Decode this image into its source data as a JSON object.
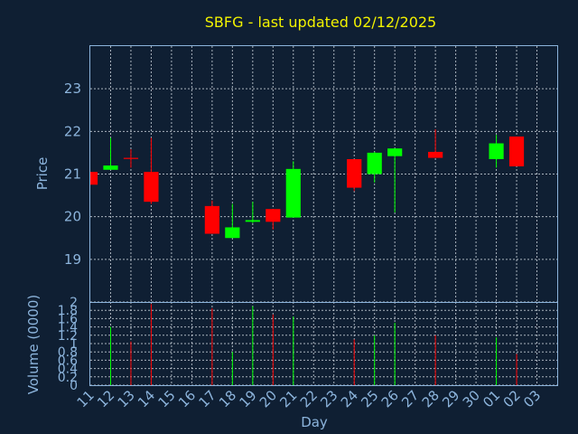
{
  "chart_data": {
    "type": "candlestick",
    "title": "SBFG - last updated 02/12/2025",
    "ylabel": "Price",
    "volume_label": "Volume (0000)",
    "xlabel": "Day",
    "x_ticks": [
      "11",
      "12",
      "13",
      "14",
      "15",
      "16",
      "17",
      "18",
      "19",
      "20",
      "21",
      "22",
      "23",
      "24",
      "25",
      "26",
      "27",
      "28",
      "29",
      "30",
      "01",
      "02",
      "03"
    ],
    "price_ylim": [
      18.0,
      24.0
    ],
    "price_ticks": [
      "19",
      "20",
      "21",
      "22",
      "23"
    ],
    "volume_ylim": [
      0,
      2
    ],
    "volume_ticks": [
      "0",
      "0.2",
      "0.4",
      "0.6",
      "0.8",
      "1",
      "1.2",
      "1.4",
      "1.6",
      "1.8",
      "2"
    ],
    "grid": true,
    "colors": {
      "up": "#00ff00",
      "down": "#ff0000",
      "neutral": "#ff0000"
    },
    "candles": [
      {
        "x": 11,
        "open": 21.05,
        "high": 21.05,
        "low": 20.75,
        "close": 20.75,
        "volume": 0.0
      },
      {
        "x": 12,
        "open": 21.1,
        "high": 21.85,
        "low": 21.1,
        "close": 21.2,
        "volume": 1.4
      },
      {
        "x": 13,
        "open": 21.38,
        "high": 21.58,
        "low": 21.15,
        "close": 21.38,
        "volume": 1.05
      },
      {
        "x": 14,
        "open": 21.05,
        "high": 21.85,
        "low": 20.3,
        "close": 20.35,
        "volume": 1.95
      },
      {
        "x": 17,
        "open": 20.25,
        "high": 20.38,
        "low": 19.6,
        "close": 19.6,
        "volume": 1.85
      },
      {
        "x": 18,
        "open": 19.5,
        "high": 20.3,
        "low": 19.5,
        "close": 19.75,
        "volume": 0.8
      },
      {
        "x": 19,
        "open": 19.88,
        "high": 20.35,
        "low": 19.85,
        "close": 19.92,
        "volume": 1.9
      },
      {
        "x": 20,
        "open": 20.18,
        "high": 20.18,
        "low": 19.7,
        "close": 19.88,
        "volume": 1.7
      },
      {
        "x": 21,
        "open": 19.98,
        "high": 21.3,
        "low": 19.98,
        "close": 21.12,
        "volume": 1.65
      },
      {
        "x": 24,
        "open": 21.35,
        "high": 21.35,
        "low": 20.6,
        "close": 20.68,
        "volume": 1.1
      },
      {
        "x": 25,
        "open": 21.0,
        "high": 21.52,
        "low": 20.8,
        "close": 21.5,
        "volume": 1.2
      },
      {
        "x": 26,
        "open": 21.42,
        "high": 21.6,
        "low": 20.1,
        "close": 21.6,
        "volume": 1.5
      },
      {
        "x": 28,
        "open": 21.52,
        "high": 22.05,
        "low": 21.38,
        "close": 21.38,
        "volume": 1.2
      },
      {
        "x": 31,
        "open": 21.35,
        "high": 21.92,
        "low": 21.15,
        "close": 21.72,
        "volume": 1.15
      },
      {
        "x": 32,
        "open": 21.88,
        "high": 21.88,
        "low": 21.18,
        "close": 21.18,
        "volume": 0.75
      }
    ]
  }
}
